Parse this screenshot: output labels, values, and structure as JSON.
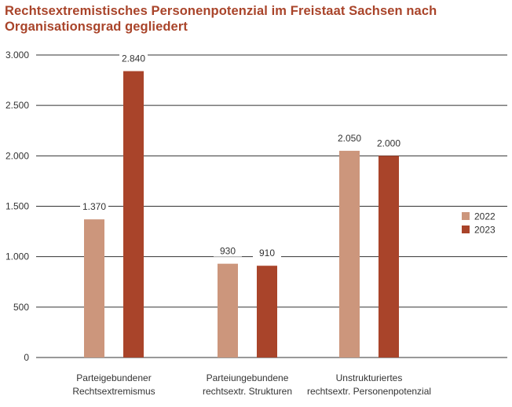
{
  "title": "Rechtsextremistisches Personenpotenzial im Freistaat Sachsen nach Organisationsgrad gegliedert",
  "colors": {
    "2022": "#cc967c",
    "2023": "#a9442a",
    "title": "#a9442a",
    "grid": "#333333"
  },
  "chart_data": {
    "type": "bar",
    "title": "Rechtsextremistisches Personenpotenzial im Freistaat Sachsen nach Organisationsgrad gegliedert",
    "categories": [
      [
        "Parteigebundener",
        "Rechtsextremismus"
      ],
      [
        "Parteiungebundene",
        "rechtsextr. Strukturen"
      ],
      [
        "Unstrukturiertes",
        "rechtsextr. Personenpotenzial"
      ]
    ],
    "series": [
      {
        "name": "2022",
        "values": [
          1370,
          930,
          2050
        ],
        "labels": [
          "1.370",
          "930",
          "2.050"
        ],
        "color": "#cc967c"
      },
      {
        "name": "2023",
        "values": [
          2840,
          910,
          2000
        ],
        "labels": [
          "2.840",
          "910",
          "2.000"
        ],
        "color": "#a9442a"
      }
    ],
    "ylim": [
      0,
      3000
    ],
    "yticks": [
      0,
      500,
      1000,
      1500,
      2000,
      2500,
      3000
    ],
    "ytick_labels": [
      "0",
      "500",
      "1.000",
      "1.500",
      "2.000",
      "2.500",
      "3.000"
    ],
    "xlabel": "",
    "ylabel": "",
    "grid": true,
    "legend": "right"
  }
}
